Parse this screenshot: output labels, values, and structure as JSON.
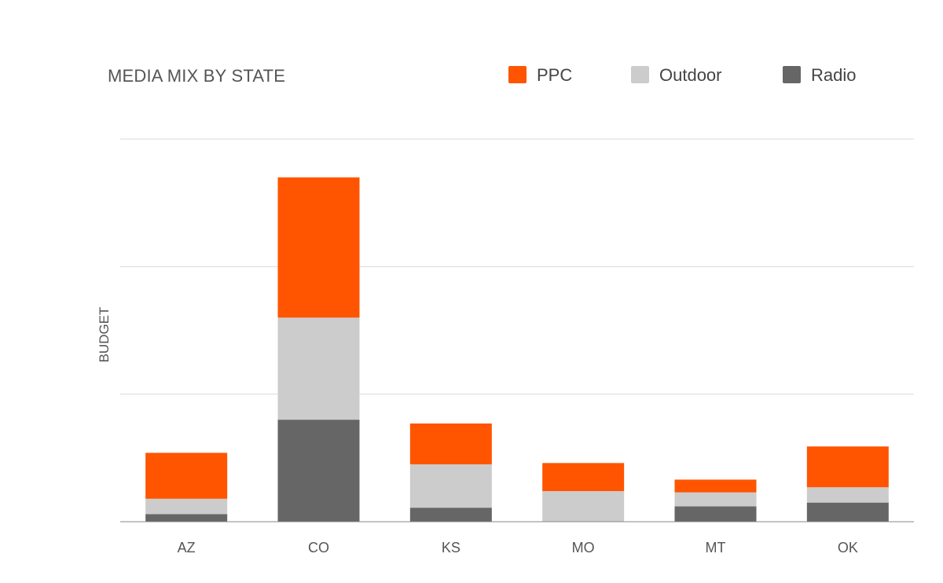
{
  "chart_data": {
    "type": "bar",
    "stacked": true,
    "title": "MEDIA MIX BY STATE",
    "xlabel": "",
    "ylabel": "BUDGET",
    "categories": [
      "AZ",
      "CO",
      "KS",
      "MO",
      "MT",
      "OK"
    ],
    "series": [
      {
        "name": "Radio",
        "color": "#666666",
        "values": [
          0.06,
          0.8,
          0.11,
          0.0,
          0.12,
          0.15
        ]
      },
      {
        "name": "Outdoor",
        "color": "#cccccc",
        "values": [
          0.12,
          0.8,
          0.34,
          0.24,
          0.11,
          0.12
        ]
      },
      {
        "name": "PPC",
        "color": "#ff5500",
        "values": [
          0.36,
          1.1,
          0.32,
          0.22,
          0.1,
          0.32
        ]
      }
    ],
    "legend_order": [
      "PPC",
      "Outdoor",
      "Radio"
    ],
    "ylim": [
      0,
      3
    ],
    "yticks_visible": false,
    "grid": true,
    "legend_position": "top-right"
  }
}
